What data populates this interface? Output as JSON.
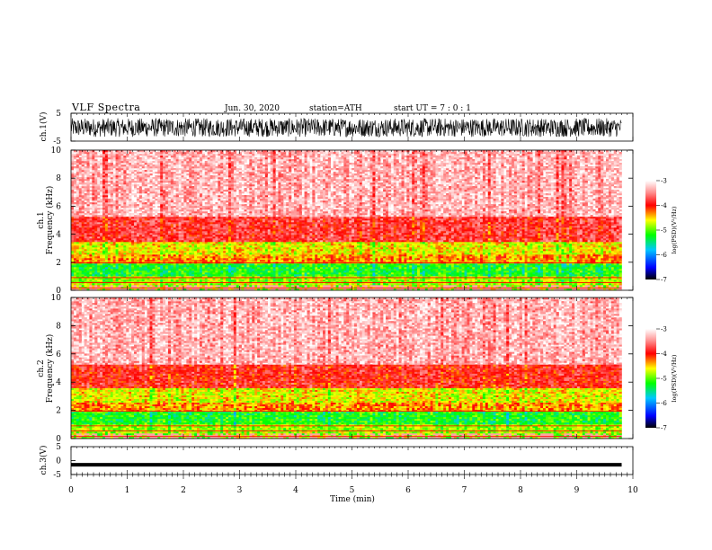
{
  "header": {
    "title": "VLF  Spectra",
    "date": "Jun. 30, 2020",
    "station": "station=ATH",
    "start": "start  UT  =    7  : 0   : 1"
  },
  "chart_data": {
    "type": "heatmap",
    "x": {
      "label": "Time  (min)",
      "range": [
        0,
        10
      ],
      "ticks": [
        "0",
        "1",
        "2",
        "3",
        "4",
        "5",
        "6",
        "7",
        "8",
        "9",
        "10"
      ],
      "data_end_min": 9.8
    },
    "panels": [
      {
        "kind": "waveform",
        "ylabel": "ch.1(V)",
        "yrange": [
          -5,
          5
        ],
        "ticks": [
          "5",
          "-5"
        ],
        "amplitude_range": [
          -3.5,
          3.2
        ]
      },
      {
        "kind": "spectrogram",
        "ylabel_line1": "ch.1",
        "ylabel_line2": "Frequency  (kHz)",
        "yrange": [
          0,
          10
        ],
        "ticks": [
          "0",
          "2",
          "4",
          "6",
          "8",
          "10"
        ],
        "bands_khz": [
          {
            "from": 0,
            "to": 0.4,
            "level": "mixed"
          },
          {
            "from": 0.4,
            "to": 1.0,
            "level": "-4.8"
          },
          {
            "from": 1.0,
            "to": 1.9,
            "level": "-5.2"
          },
          {
            "from": 1.9,
            "to": 2.6,
            "level": "-4.3"
          },
          {
            "from": 2.6,
            "to": 3.5,
            "level": "-4.6"
          },
          {
            "from": 3.5,
            "to": 5.2,
            "level": "-3.8"
          },
          {
            "from": 5.2,
            "to": 10.0,
            "level": "-3.3"
          }
        ]
      },
      {
        "kind": "spectrogram",
        "ylabel_line1": "ch.2",
        "ylabel_line2": "Frequency  (kHz)",
        "yrange": [
          0,
          10
        ],
        "ticks": [
          "0",
          "2",
          "4",
          "6",
          "8",
          "10"
        ],
        "bands_khz": [
          {
            "from": 0,
            "to": 0.4,
            "level": "mixed"
          },
          {
            "from": 0.4,
            "to": 1.0,
            "level": "-4.8"
          },
          {
            "from": 1.0,
            "to": 1.9,
            "level": "-5.2"
          },
          {
            "from": 1.9,
            "to": 2.6,
            "level": "-4.3"
          },
          {
            "from": 2.6,
            "to": 3.6,
            "level": "-4.6"
          },
          {
            "from": 3.6,
            "to": 5.3,
            "level": "-3.9"
          },
          {
            "from": 5.3,
            "to": 10.0,
            "level": "-3.3"
          }
        ]
      },
      {
        "kind": "waveform",
        "ylabel": "ch.3(V)",
        "yrange": [
          -5,
          5
        ],
        "ticks": [
          "5",
          "0",
          "-5"
        ],
        "offset_volts": -1.5
      }
    ],
    "colorbar": {
      "label": "log(PSD)(V²/Hz)",
      "range": [
        -7,
        -3
      ],
      "ticks": [
        "-3",
        "-4",
        "-5",
        "-6",
        "-7"
      ],
      "colors": [
        "#000000",
        "#0000ff",
        "#00c8ff",
        "#00ff00",
        "#ffff00",
        "#ff0000",
        "#ffffff"
      ]
    }
  }
}
